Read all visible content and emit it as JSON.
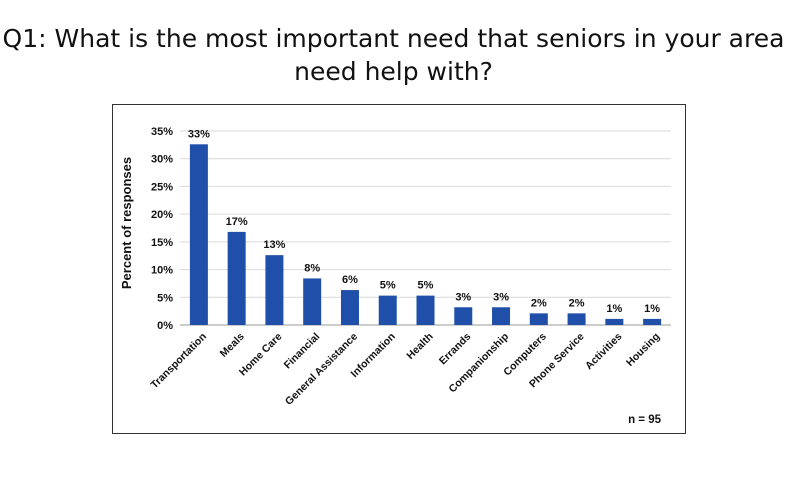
{
  "title_lines": [
    "Q1: What is the most important need that seniors in your area",
    "need help with?"
  ],
  "chart_data": {
    "type": "bar",
    "title": "Q1: What is the most important need that seniors in your area need help with?",
    "categories": [
      "Transportation",
      "Meals",
      "Home Care",
      "Financial",
      "General Assistance",
      "Information",
      "Health",
      "Errands",
      "Companionship",
      "Computers",
      "Phone Service",
      "Activities",
      "Housing"
    ],
    "values": [
      33,
      17,
      13,
      8,
      6,
      5,
      5,
      3,
      3,
      2,
      2,
      1,
      1
    ],
    "bar_values": [
      32.6,
      16.8,
      12.6,
      8.4,
      6.3,
      5.3,
      5.3,
      3.2,
      3.2,
      2.1,
      2.1,
      1.1,
      1.1
    ],
    "data_labels": [
      "33%",
      "17%",
      "13%",
      "8%",
      "6%",
      "5%",
      "5%",
      "3%",
      "3%",
      "2%",
      "2%",
      "1%",
      "1%"
    ],
    "ylabel": "Percent of responses",
    "xlabel": "",
    "ylim": [
      0,
      35
    ],
    "yticks": [
      0,
      5,
      10,
      15,
      20,
      25,
      30,
      35
    ],
    "ytick_labels": [
      "0%",
      "5%",
      "10%",
      "15%",
      "20%",
      "25%",
      "30%",
      "35%"
    ],
    "grid": true,
    "bar_color": "#1f4fa8",
    "note": "n = 95"
  }
}
